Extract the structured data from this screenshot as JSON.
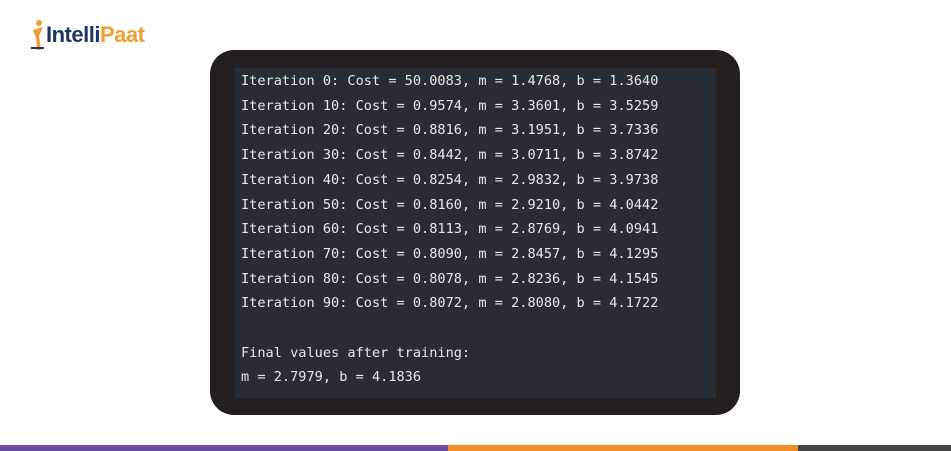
{
  "logo": {
    "first": "Intelli",
    "second": "Paat"
  },
  "console": {
    "lines": [
      "Iteration 0: Cost = 50.0083, m = 1.4768, b = 1.3640",
      "Iteration 10: Cost = 0.9574, m = 3.3601, b = 3.5259",
      "Iteration 20: Cost = 0.8816, m = 3.1951, b = 3.7336",
      "Iteration 30: Cost = 0.8442, m = 3.0711, b = 3.8742",
      "Iteration 40: Cost = 0.8254, m = 2.9832, b = 3.9738",
      "Iteration 50: Cost = 0.8160, m = 2.9210, b = 4.0442",
      "Iteration 60: Cost = 0.8113, m = 2.8769, b = 4.0941",
      "Iteration 70: Cost = 0.8090, m = 2.8457, b = 4.1295",
      "Iteration 80: Cost = 0.8078, m = 2.8236, b = 4.1545",
      "Iteration 90: Cost = 0.8072, m = 2.8080, b = 4.1722"
    ],
    "final_heading": "Final values after training:",
    "final_values": "m = 2.7979, b = 4.1836"
  }
}
